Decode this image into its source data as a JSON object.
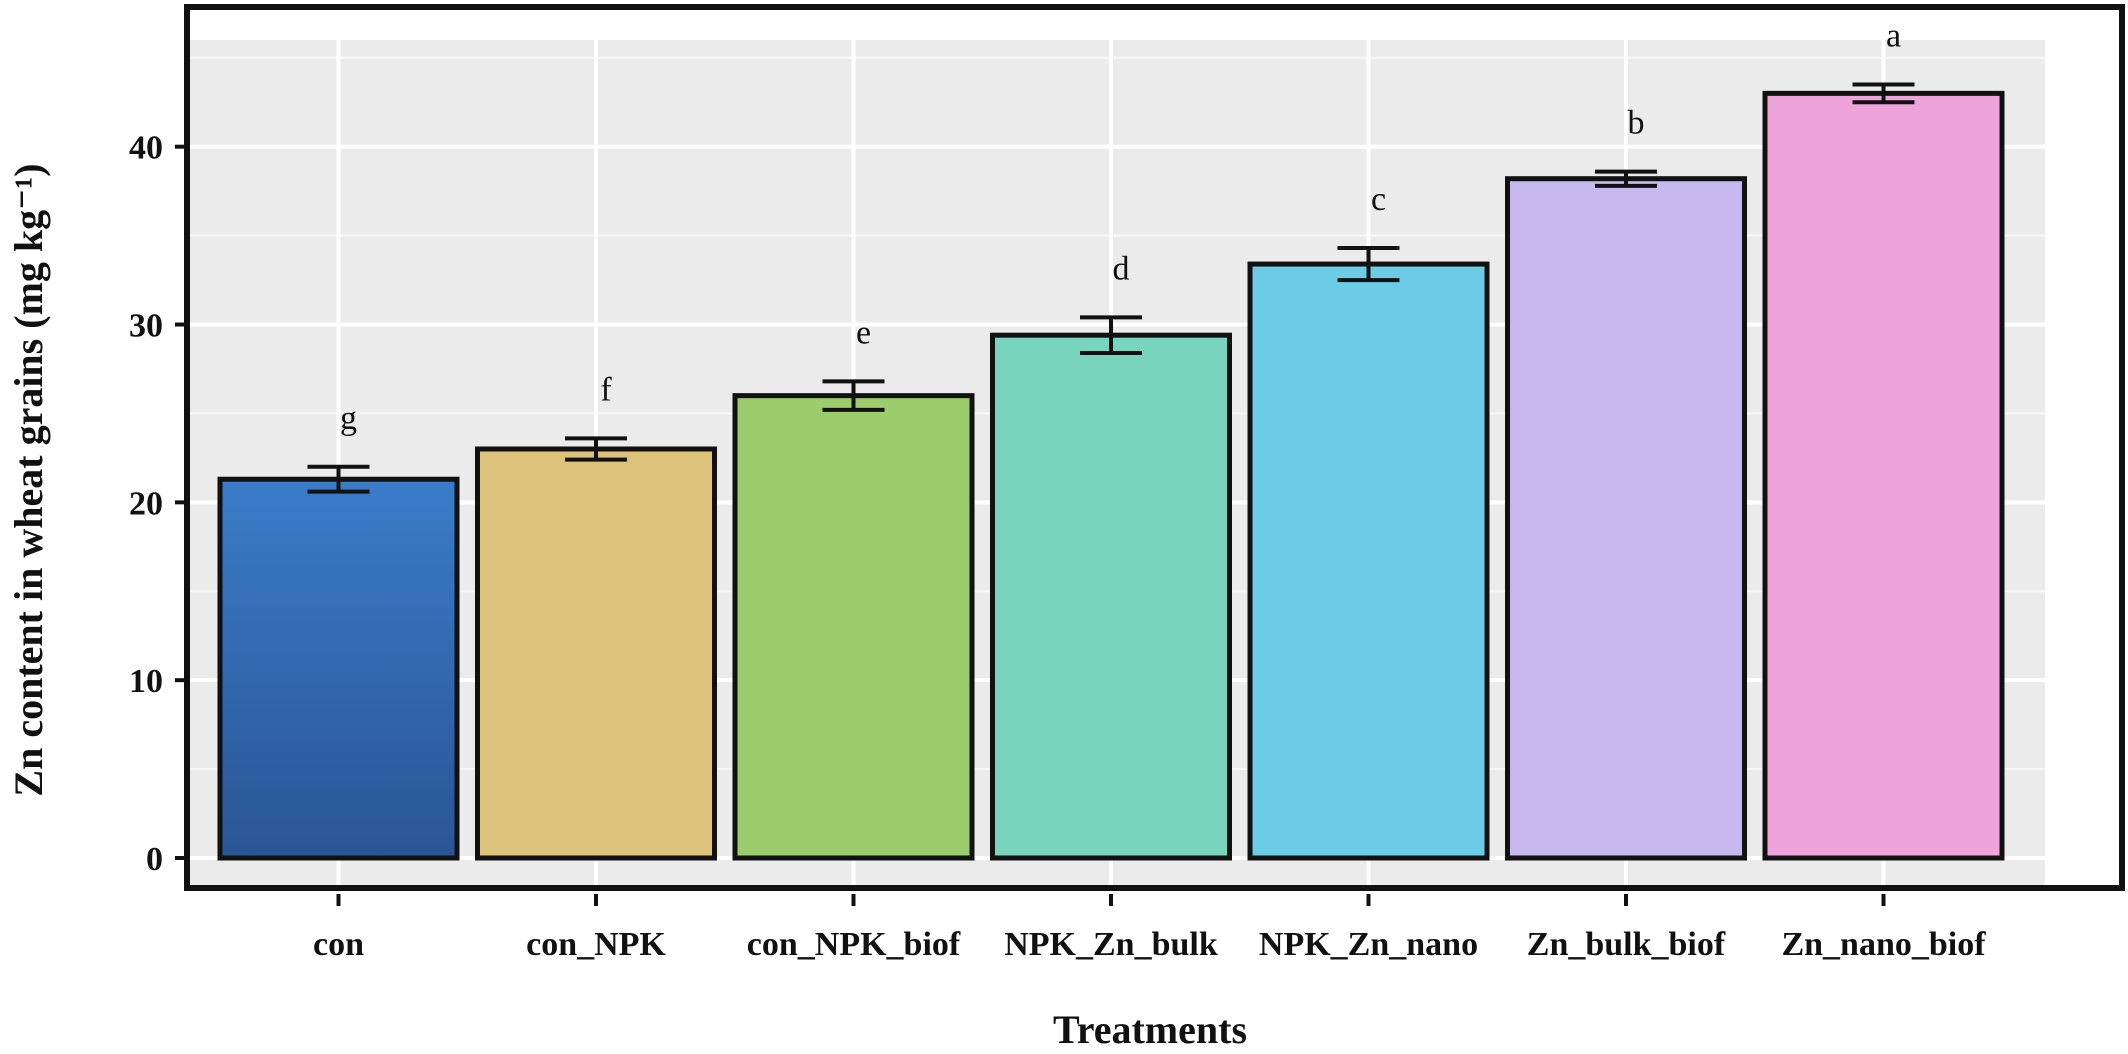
{
  "chart_data": {
    "type": "bar",
    "xlabel": "Treatments",
    "ylabel": "Zn content in wheat grains (mg kg⁻¹)",
    "categories": [
      "con",
      "con_NPK",
      "con_NPK_biof",
      "NPK_Zn_bulk",
      "NPK_Zn_nano",
      "Zn_bulk_biof",
      "Zn_nano_biof"
    ],
    "values": [
      21.3,
      23.0,
      26.0,
      29.4,
      33.4,
      38.2,
      43.0
    ],
    "errors": [
      0.7,
      0.6,
      0.8,
      1.0,
      0.9,
      0.4,
      0.5
    ],
    "significance": [
      "g",
      "f",
      "e",
      "d",
      "c",
      "b",
      "a"
    ],
    "colors": [
      "#2f5f9e",
      "#dcc27a",
      "#9ccc6c",
      "#78d4bc",
      "#6ccce6",
      "#c6b8ee",
      "#eea4da"
    ],
    "ylim": [
      0,
      46
    ],
    "yticks": [
      "0",
      "10",
      "20",
      "30",
      "40"
    ],
    "grid": true
  }
}
